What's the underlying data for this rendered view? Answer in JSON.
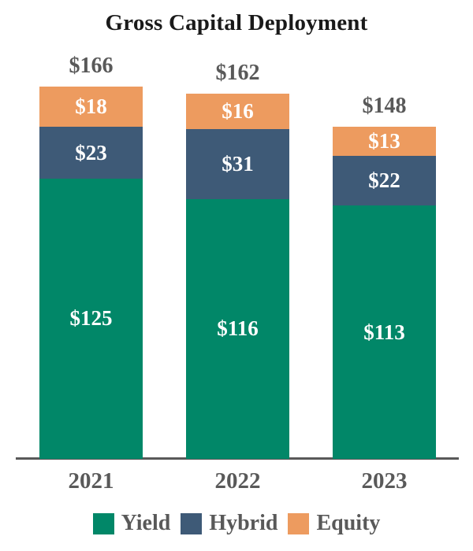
{
  "title": "Gross Capital Deployment",
  "chart_data": {
    "type": "bar",
    "stacked": true,
    "title": "Gross Capital Deployment",
    "categories": [
      "2021",
      "2022",
      "2023"
    ],
    "series": [
      {
        "name": "Yield",
        "color": "#018768",
        "values": [
          125,
          116,
          113
        ],
        "labels": [
          "$125",
          "$116",
          "$113"
        ]
      },
      {
        "name": "Hybrid",
        "color": "#3E5A77",
        "values": [
          23,
          31,
          22
        ],
        "labels": [
          "$23",
          "$31",
          "$22"
        ]
      },
      {
        "name": "Equity",
        "color": "#ED9B5F",
        "values": [
          18,
          16,
          13
        ],
        "labels": [
          "$18",
          "$16",
          "$13"
        ]
      }
    ],
    "totals": [
      166,
      162,
      148
    ],
    "total_labels": [
      "$166",
      "$162",
      "$148"
    ],
    "value_prefix": "$",
    "legend_position": "bottom",
    "grid": false,
    "ylim": [
      0,
      166
    ]
  },
  "colors": {
    "yield": "#018768",
    "hybrid": "#3E5A77",
    "equity": "#ED9B5F",
    "axis_line": "#595959",
    "gray_text": "#595959",
    "title_text": "#1A1A1A",
    "segment_label_text": "#FFFFFF",
    "background": "#FFFFFF"
  }
}
